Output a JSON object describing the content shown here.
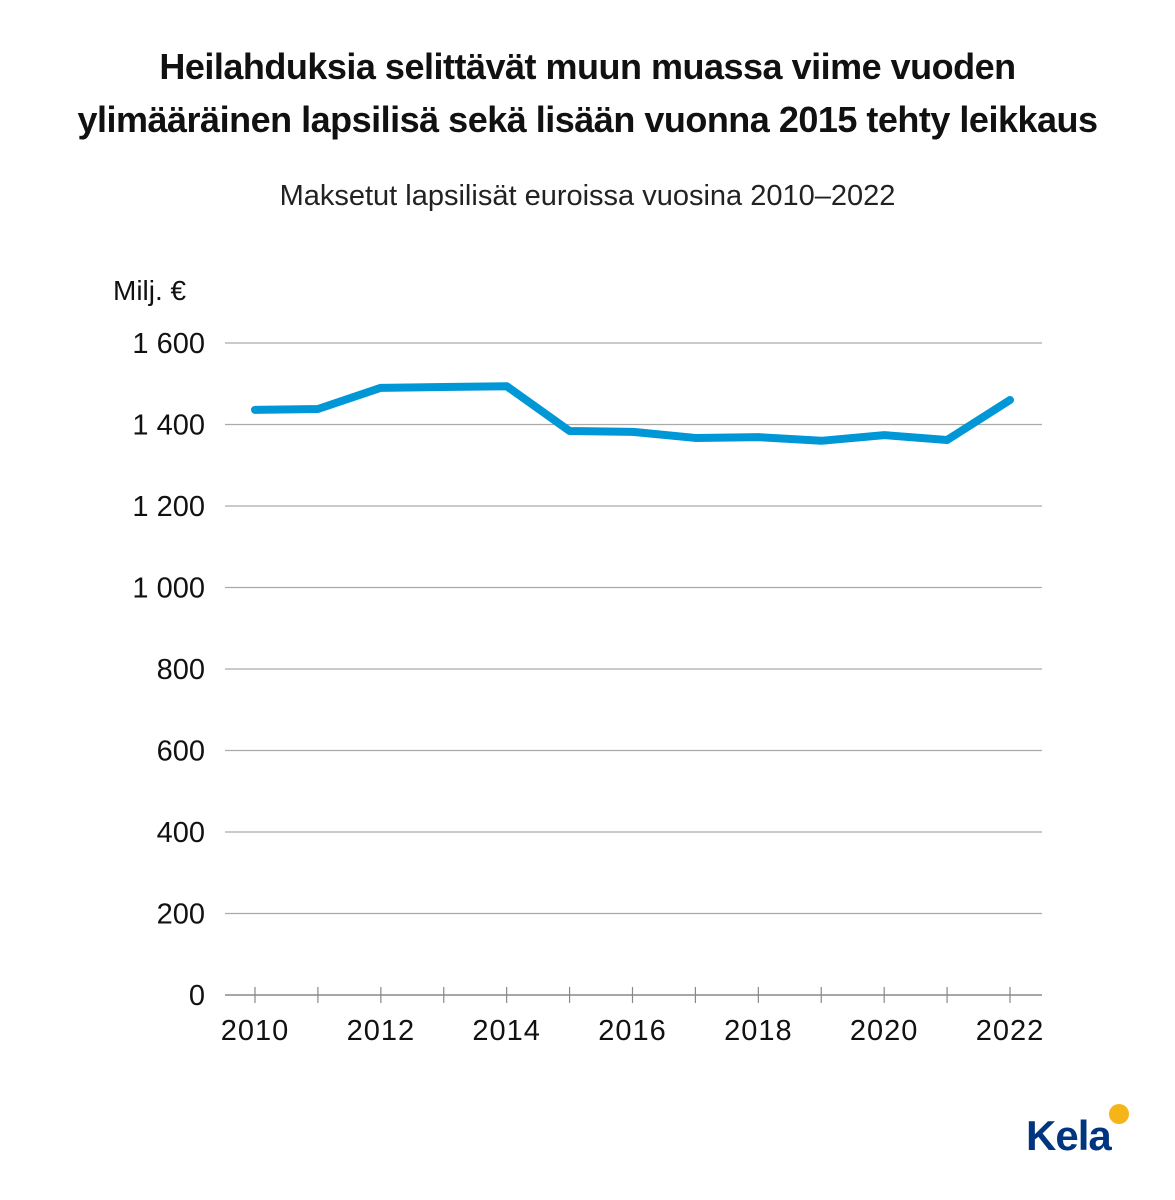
{
  "title_line1": "Heilahduksia selittävät muun muassa viime vuoden",
  "title_line2": "ylimääräinen lapsilisä sekä lisään vuonna 2015 tehty leikkaus",
  "subtitle": "Maksetut lapsilisät euroissa vuosina 2010–2022",
  "logo": "Kela",
  "chart_data": {
    "type": "line",
    "title": "Heilahduksia selittävät muun muassa viime vuoden ylimääräinen lapsilisä sekä lisään vuonna 2015 tehty leikkaus",
    "subtitle": "Maksetut lapsilisät euroissa vuosina 2010–2022",
    "ylabel": "Milj. €",
    "xlabel": "",
    "x": [
      2010,
      2011,
      2012,
      2013,
      2014,
      2015,
      2016,
      2017,
      2018,
      2019,
      2020,
      2021,
      2022
    ],
    "series": [
      {
        "name": "Maksetut lapsilisät",
        "color": "#0097d7",
        "values": [
          1436,
          1438,
          1490,
          1492,
          1494,
          1384,
          1382,
          1367,
          1369,
          1360,
          1374,
          1362,
          1460
        ]
      }
    ],
    "ylim": [
      0,
      1600
    ],
    "yticks": [
      0,
      200,
      400,
      600,
      800,
      1000,
      1200,
      1400,
      1600
    ],
    "ytick_labels": [
      "0",
      "200",
      "400",
      "600",
      "800",
      "1 000",
      "1 200",
      "1 400",
      "1 600"
    ],
    "xtick_labels": [
      "2010",
      "2012",
      "2014",
      "2016",
      "2018",
      "2020",
      "2022"
    ],
    "grid": true,
    "legend": "none"
  }
}
